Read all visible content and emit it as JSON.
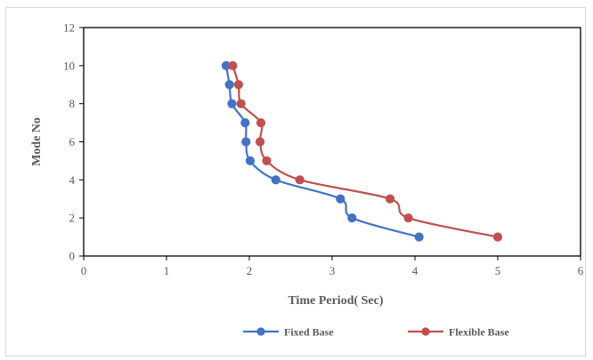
{
  "chart_data": {
    "type": "line",
    "xlabel": "Time Period( Sec)",
    "ylabel": "Mode No",
    "xlim": [
      0,
      6
    ],
    "ylim": [
      0,
      12
    ],
    "x_ticks": [
      "0",
      "1",
      "2",
      "3",
      "4",
      "5",
      "6"
    ],
    "y_ticks": [
      "0",
      "2",
      "4",
      "6",
      "8",
      "10",
      "12"
    ],
    "grid": false,
    "legend_position": "bottom",
    "series": [
      {
        "name": "Fixed Base",
        "color": "#4472c4",
        "x": [
          4.05,
          3.24,
          3.1,
          2.32,
          2.01,
          1.96,
          1.95,
          1.79,
          1.76,
          1.72
        ],
        "y": [
          1,
          2,
          3,
          4,
          5,
          6,
          7,
          8,
          9,
          10
        ]
      },
      {
        "name": "Flexible Base",
        "color": "#c0504d",
        "x": [
          5.0,
          3.92,
          3.7,
          2.61,
          2.21,
          2.13,
          2.14,
          1.9,
          1.87,
          1.8
        ],
        "y": [
          1,
          2,
          3,
          4,
          5,
          6,
          7,
          8,
          9,
          10
        ]
      }
    ]
  }
}
